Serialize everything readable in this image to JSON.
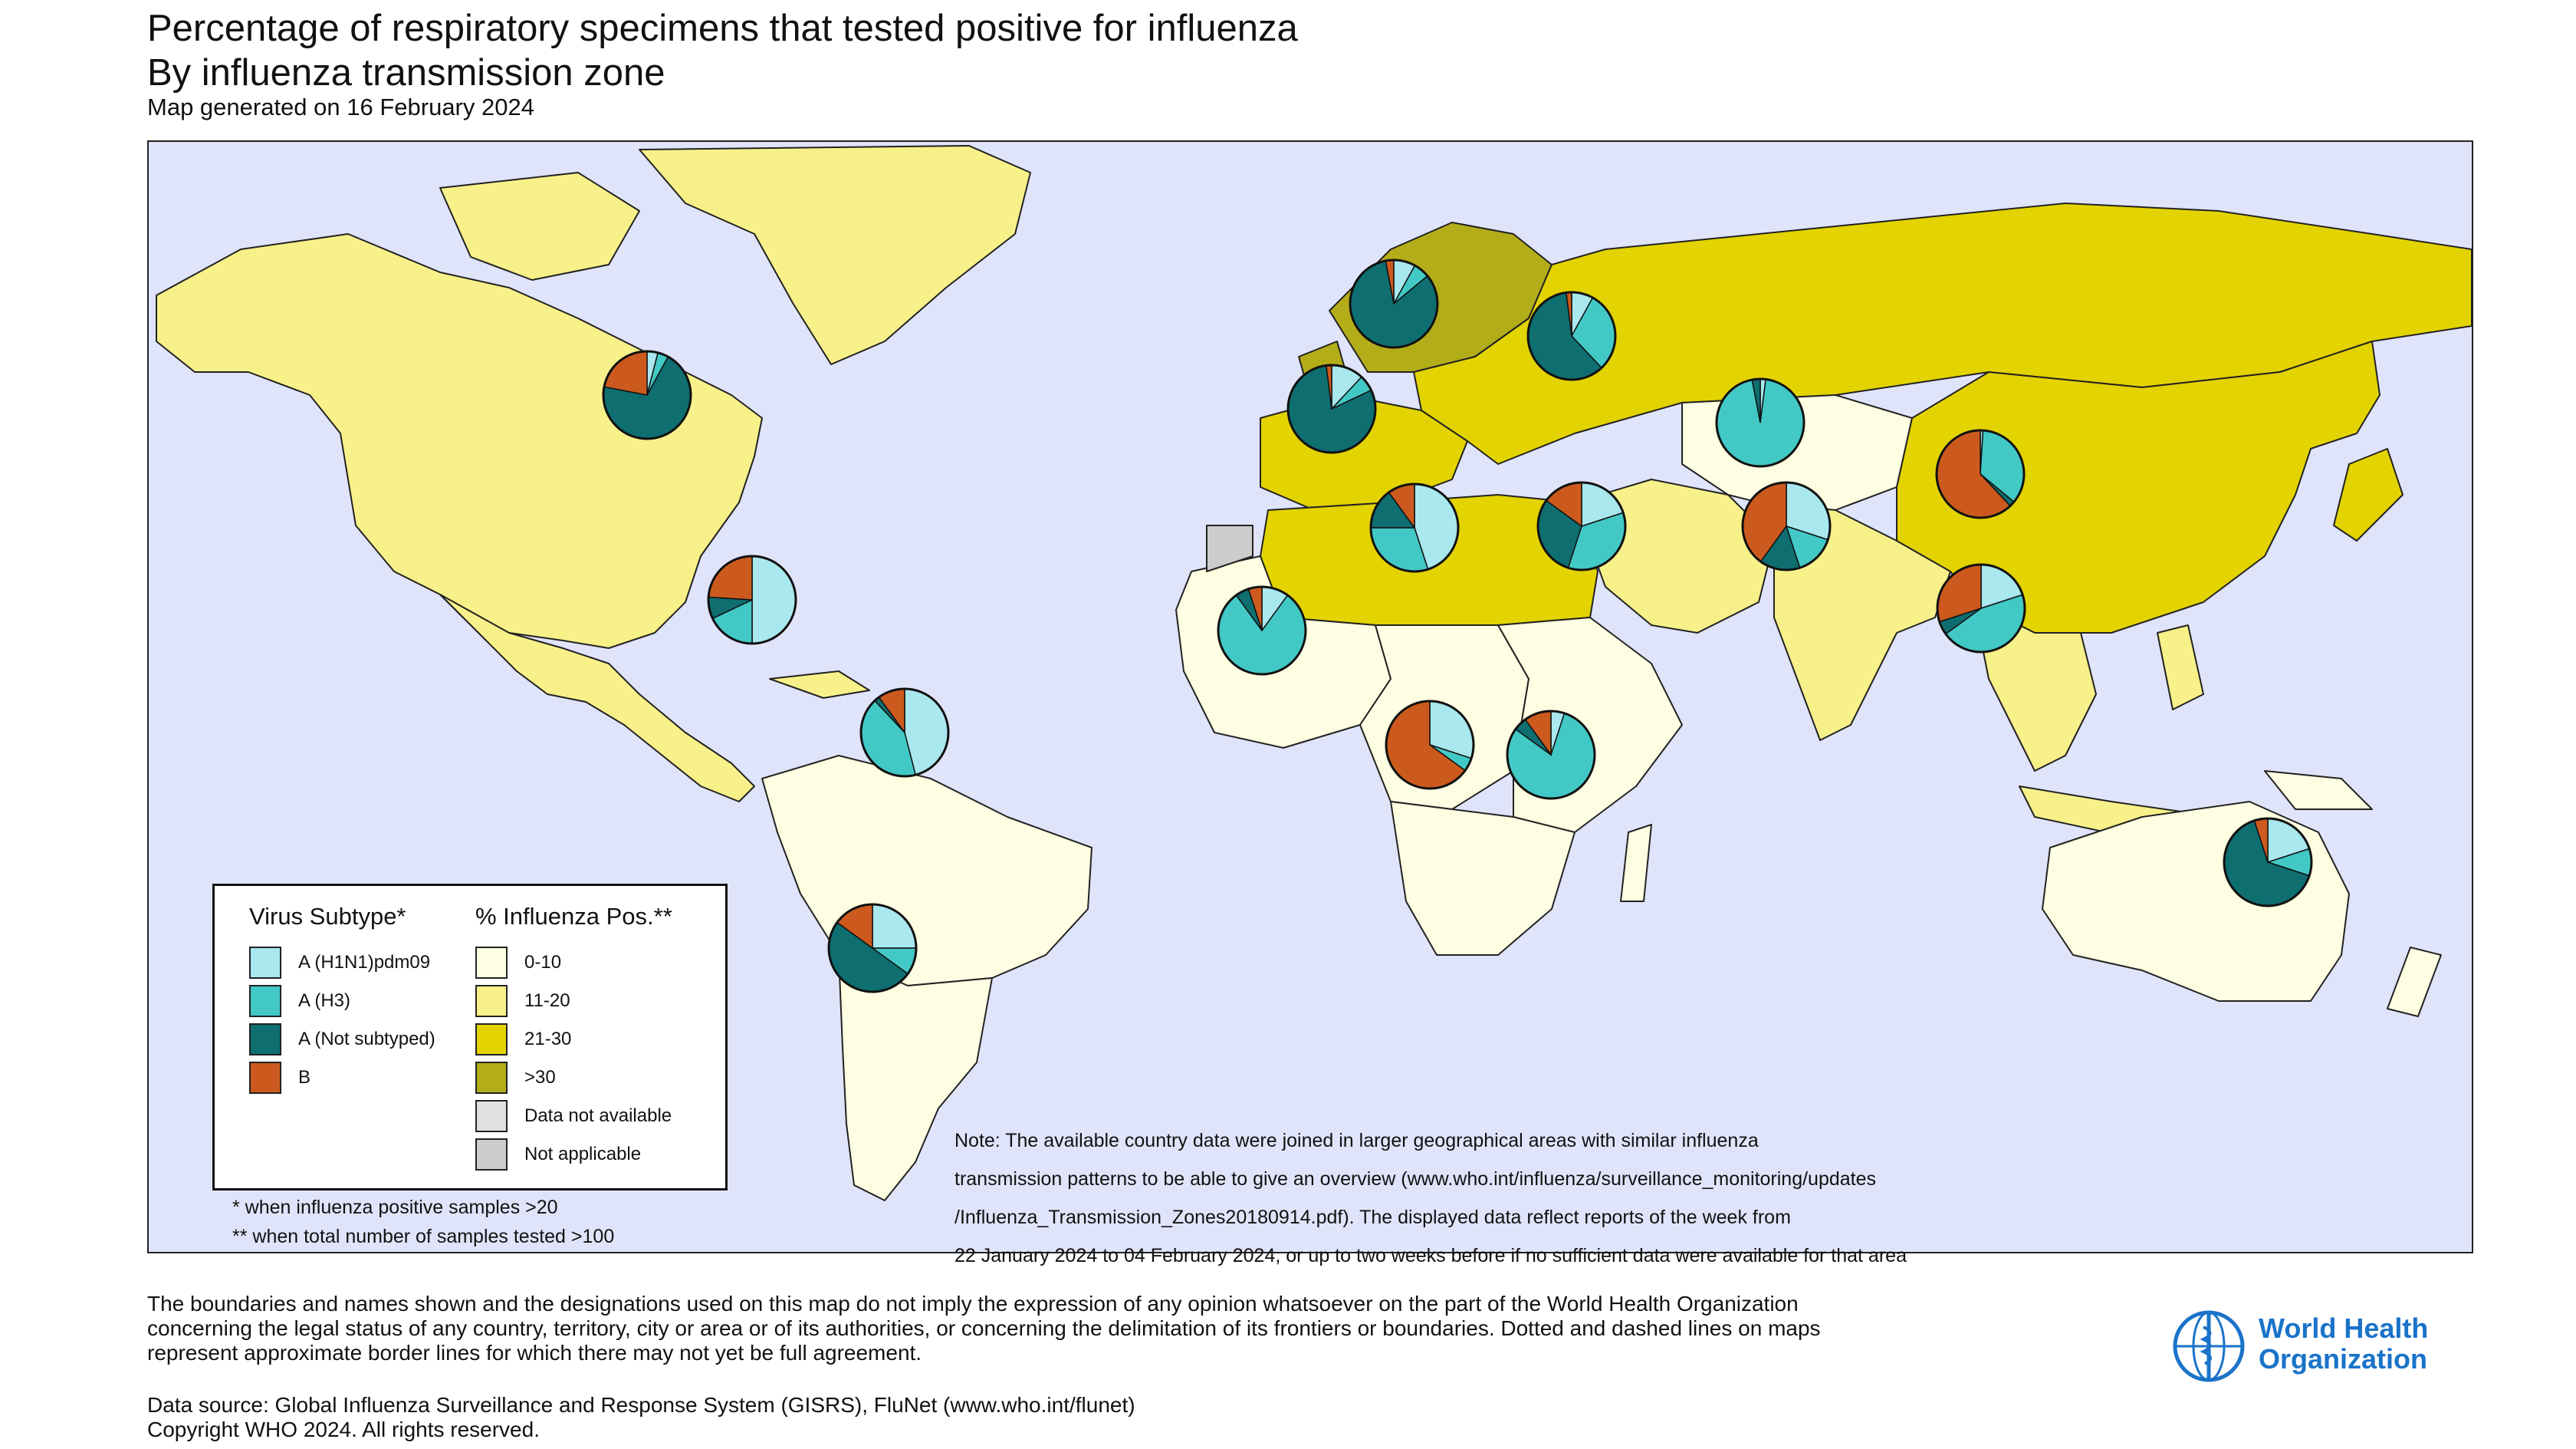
{
  "header": {
    "title_line1": "Percentage of respiratory specimens that tested positive for influenza",
    "title_line2": "By influenza transmission zone",
    "subtitle": "Map generated on 16 February 2024"
  },
  "colors": {
    "ocean": "#e0e4fa",
    "h1n1": "#a8e8ee",
    "h3": "#42c9c6",
    "not_subtyped": "#0e6e70",
    "b": "#cc5a1e",
    "pos_0_10": "#fefee2",
    "pos_11_20": "#f8f18a",
    "pos_21_30": "#e3d300",
    "pos_gt30": "#b4ad1a",
    "no_data": "#e0e0e0",
    "not_applicable": "#cccccc"
  },
  "legend": {
    "subtype_title": "Virus Subtype*",
    "pos_title": "% Influenza Pos.**",
    "subtypes": [
      {
        "label": "A (H1N1)pdm09",
        "color_key": "h1n1"
      },
      {
        "label": "A (H3)",
        "color_key": "h3"
      },
      {
        "label": "A (Not subtyped)",
        "color_key": "not_subtyped"
      },
      {
        "label": "B",
        "color_key": "b"
      }
    ],
    "positivity": [
      {
        "label": "0-10",
        "color_key": "pos_0_10"
      },
      {
        "label": "11-20",
        "color_key": "pos_11_20"
      },
      {
        "label": "21-30",
        "color_key": "pos_21_30"
      },
      {
        "label": ">30",
        "color_key": "pos_gt30"
      },
      {
        "label": "Data not available",
        "color_key": "no_data"
      },
      {
        "label": "Not applicable",
        "color_key": "not_applicable"
      }
    ],
    "footnote1": "* when influenza positive samples >20",
    "footnote2": "** when total number of samples tested >100"
  },
  "note": {
    "line1": "Note: The available country data were joined in larger geographical areas with similar influenza",
    "line2": "transmission patterns to be able to give an overview (www.who.int/influenza/surveillance_monitoring/updates",
    "line3": "/Influenza_Transmission_Zones20180914.pdf). The displayed data reflect reports of the week from",
    "line4": "22 January 2024 to 04 February 2024, or up to two weeks before if no sufficient data were available for that area"
  },
  "disclaimer": {
    "line1": "The boundaries and names shown and the designations used on this map do not imply the expression of any opinion whatsoever on the part of the World Health Organization",
    "line2": "concerning the legal status of any country, territory, city or area or of its authorities, or concerning the delimitation of its frontiers or boundaries. Dotted and dashed lines on maps",
    "line3": "represent approximate border lines for which there may not yet be full agreement."
  },
  "source": {
    "line1": "Data source: Global Influenza Surveillance and Response System (GISRS), FluNet (www.who.int/flunet)",
    "line2": "Copyright WHO 2024. All rights reserved."
  },
  "logo": {
    "line1": "World Health",
    "line2": "Organization"
  },
  "map_data": {
    "zones": [
      {
        "zone": "North America",
        "positivity": "11-20"
      },
      {
        "zone": "Central America and Caribbean",
        "positivity": "11-20"
      },
      {
        "zone": "Tropical South America",
        "positivity": "0-10"
      },
      {
        "zone": "Temperate South America",
        "positivity": "0-10"
      },
      {
        "zone": "Northern Europe",
        "positivity": ">30"
      },
      {
        "zone": "South West Europe",
        "positivity": "21-30"
      },
      {
        "zone": "Eastern Europe",
        "positivity": "21-30"
      },
      {
        "zone": "Northern Africa",
        "positivity": "21-30"
      },
      {
        "zone": "Western Africa",
        "positivity": "0-10"
      },
      {
        "zone": "Middle Africa",
        "positivity": "0-10"
      },
      {
        "zone": "Eastern Africa",
        "positivity": "0-10"
      },
      {
        "zone": "Southern Africa",
        "positivity": "0-10"
      },
      {
        "zone": "Western Asia",
        "positivity": "11-20"
      },
      {
        "zone": "Central Asia",
        "positivity": "0-10"
      },
      {
        "zone": "Southern Asia",
        "positivity": "11-20"
      },
      {
        "zone": "Eastern Asia",
        "positivity": "21-30"
      },
      {
        "zone": "South-East Asia",
        "positivity": "11-20"
      },
      {
        "zone": "Oceania Melanesia Polynesia",
        "positivity": "0-10"
      }
    ],
    "pies": [
      {
        "zone": "North America",
        "h1n1": 4,
        "h3": 4,
        "not_subtyped": 70,
        "b": 22
      },
      {
        "zone": "Central America and Caribbean",
        "h1n1": 50,
        "h3": 18,
        "not_subtyped": 8,
        "b": 24
      },
      {
        "zone": "Tropical South America",
        "h1n1": 46,
        "h3": 42,
        "not_subtyped": 2,
        "b": 10
      },
      {
        "zone": "Temperate South America",
        "h1n1": 25,
        "h3": 10,
        "not_subtyped": 50,
        "b": 15
      },
      {
        "zone": "Northern Europe",
        "h1n1": 8,
        "h3": 6,
        "not_subtyped": 83,
        "b": 3
      },
      {
        "zone": "Eastern Europe",
        "h1n1": 8,
        "h3": 30,
        "not_subtyped": 60,
        "b": 2
      },
      {
        "zone": "South West Europe",
        "h1n1": 12,
        "h3": 6,
        "not_subtyped": 80,
        "b": 2
      },
      {
        "zone": "Northern Africa",
        "h1n1": 45,
        "h3": 30,
        "not_subtyped": 15,
        "b": 10
      },
      {
        "zone": "Western Asia",
        "h1n1": 20,
        "h3": 35,
        "not_subtyped": 30,
        "b": 15
      },
      {
        "zone": "Central Asia",
        "h1n1": 2,
        "h3": 95,
        "not_subtyped": 3,
        "b": 0
      },
      {
        "zone": "Southern Asia",
        "h1n1": 30,
        "h3": 15,
        "not_subtyped": 15,
        "b": 40
      },
      {
        "zone": "Eastern Asia",
        "h1n1": 1,
        "h3": 35,
        "not_subtyped": 2,
        "b": 62
      },
      {
        "zone": "Western Africa",
        "h1n1": 10,
        "h3": 80,
        "not_subtyped": 5,
        "b": 5
      },
      {
        "zone": "Middle Africa",
        "h1n1": 30,
        "h3": 5,
        "not_subtyped": 0,
        "b": 65
      },
      {
        "zone": "Eastern Africa",
        "h1n1": 5,
        "h3": 80,
        "not_subtyped": 5,
        "b": 10
      },
      {
        "zone": "South-East Asia",
        "h1n1": 20,
        "h3": 45,
        "not_subtyped": 5,
        "b": 30
      },
      {
        "zone": "Oceania Melanesia Polynesia",
        "h1n1": 20,
        "h3": 10,
        "not_subtyped": 65,
        "b": 5
      }
    ]
  }
}
